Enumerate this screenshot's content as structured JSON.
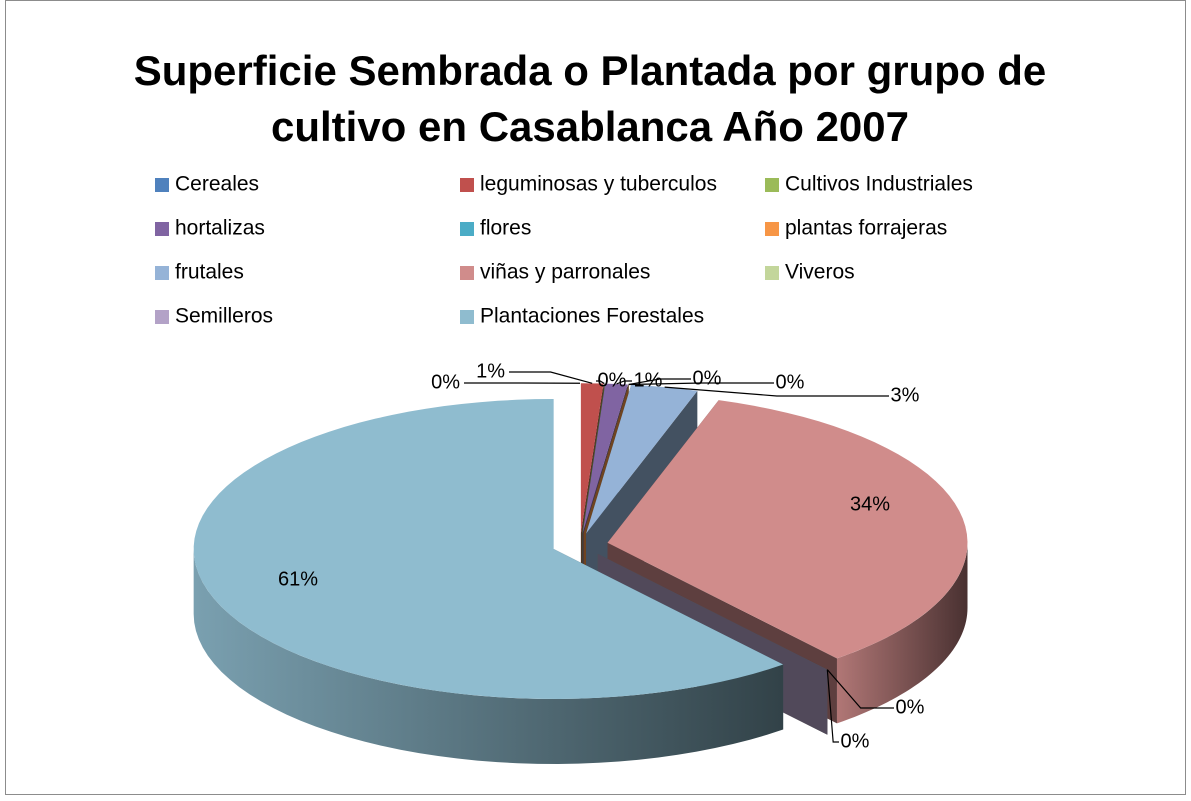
{
  "chart_data": {
    "type": "pie",
    "title": "Superficie Sembrada o Plantada por grupo de cultivo en Casablanca Año 2007",
    "categories": [
      "Cereales",
      "leguminosas y tuberculos",
      "Cultivos Industriales",
      "hortalizas",
      "flores",
      "plantas forrajeras",
      "frutales",
      "viñas y parronales",
      "Viveros",
      "Semilleros",
      "Plantaciones Forestales"
    ],
    "values": [
      0,
      1,
      0,
      1,
      0,
      0,
      3,
      34,
      0,
      0,
      61
    ],
    "value_labels": [
      "0%",
      "1%",
      "0%",
      "1%",
      "0%",
      "0%",
      "3%",
      "34%",
      "0%",
      "0%",
      "61%"
    ],
    "colors": [
      "#4f81bd",
      "#c0504d",
      "#9bbb59",
      "#8064a2",
      "#4bacc6",
      "#f79646",
      "#95b3d7",
      "#d08c8b",
      "#c3d69b",
      "#b3a2c7",
      "#8fbccf"
    ],
    "legend": "top"
  }
}
